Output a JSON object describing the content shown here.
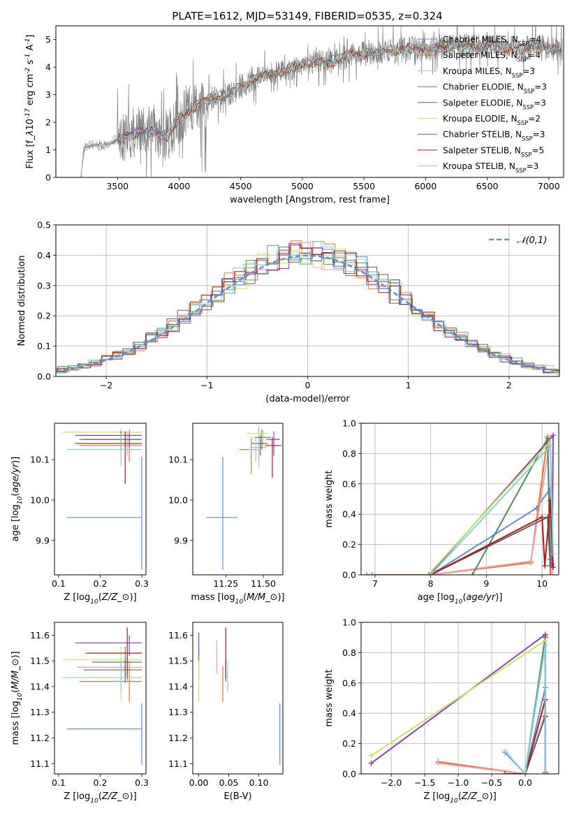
{
  "figure": {
    "title": "PLATE=1612, MJD=53149, FIBERID=0535, z=0.324"
  },
  "models": [
    {
      "label": "Chabrier MILES, N$_{SSP}$=4",
      "name": "Chabrier MILES",
      "n": "4",
      "color": "#5b8fd6"
    },
    {
      "label": "Salpeter MILES, N$_{SSP}$=4",
      "name": "Salpeter MILES",
      "n": "4",
      "color": "#e0762c"
    },
    {
      "label": "Kroupa MILES, N$_{SSP}$=3",
      "name": "Kroupa MILES",
      "n": "3",
      "color": "#f0a0b0"
    },
    {
      "label": "Chabrier ELODIE, N$_{SSP}$=3",
      "name": "Chabrier ELODIE",
      "n": "3",
      "color": "#4f8a5e"
    },
    {
      "label": "Salpeter ELODIE, N$_{SSP}$=3",
      "name": "Salpeter ELODIE",
      "n": "3",
      "color": "#8c3fb3"
    },
    {
      "label": "Kroupa ELODIE, N$_{SSP}$=2",
      "name": "Kroupa ELODIE",
      "n": "2",
      "color": "#c8e85a"
    },
    {
      "label": "Chabrier STELIB, N$_{SSP}$=3",
      "name": "Chabrier STELIB",
      "n": "3",
      "color": "#606060"
    },
    {
      "label": "Salpeter STELIB, N$_{SSP}$=5",
      "name": "Salpeter STELIB",
      "n": "5",
      "color": "#b01818"
    },
    {
      "label": "Kroupa STELIB, N$_{SSP}$=3",
      "name": "Kroupa STELIB",
      "n": "3",
      "color": "#7fd3df"
    }
  ],
  "chart_data": [
    {
      "id": "spectrum",
      "type": "line",
      "title": "PLATE=1612, MJD=53149, FIBERID=0535, z=0.324",
      "xlabel": "wavelength [Angstrom, rest frame]",
      "ylabel": "Flux [f$_\\lambda$10$^{-17}$ erg cm$^{-2}$ s$^{-1}$ A$^{-1}$]",
      "xlim": [
        3000,
        7120
      ],
      "ylim": [
        0,
        5.5
      ],
      "xticks": [
        3500,
        4000,
        4500,
        5000,
        5500,
        6000,
        6500,
        7000
      ],
      "yticks": [
        0,
        1,
        2,
        3,
        4,
        5
      ],
      "grid": false,
      "legend": "upper right",
      "data_color": "#808080",
      "data_points": [
        [
          3200,
          0.0
        ],
        [
          3230,
          1.1
        ],
        [
          3300,
          1.15
        ],
        [
          3400,
          1.2
        ],
        [
          3500,
          1.35
        ],
        [
          3600,
          1.55
        ],
        [
          3700,
          1.7
        ],
        [
          3800,
          1.65
        ],
        [
          3900,
          1.45
        ],
        [
          4000,
          2.1
        ],
        [
          4100,
          2.5
        ],
        [
          4200,
          2.75
        ],
        [
          4300,
          2.9
        ],
        [
          4400,
          3.0
        ],
        [
          4500,
          3.3
        ],
        [
          4600,
          3.55
        ],
        [
          4700,
          3.7
        ],
        [
          4800,
          3.8
        ],
        [
          4900,
          3.95
        ],
        [
          5000,
          4.1
        ],
        [
          5100,
          4.2
        ],
        [
          5200,
          4.15
        ],
        [
          5300,
          4.3
        ],
        [
          5400,
          4.45
        ],
        [
          5500,
          4.5
        ],
        [
          5600,
          4.55
        ],
        [
          5700,
          4.6
        ],
        [
          5800,
          4.65
        ],
        [
          5900,
          4.7
        ],
        [
          6000,
          4.65
        ],
        [
          6100,
          4.7
        ],
        [
          6200,
          4.75
        ],
        [
          6300,
          4.8
        ],
        [
          6400,
          4.75
        ],
        [
          6500,
          4.8
        ],
        [
          6600,
          4.75
        ],
        [
          6700,
          4.7
        ],
        [
          6800,
          4.65
        ],
        [
          6900,
          4.75
        ],
        [
          7000,
          4.7
        ],
        [
          7100,
          4.6
        ]
      ],
      "model_start": [
        3200,
        3200,
        3500,
        3500,
        3500,
        3900,
        3500,
        3500,
        3200
      ]
    },
    {
      "id": "residual_histogram",
      "type": "histogram",
      "xlabel": "(data-model)/error",
      "ylabel": "Normed distribution",
      "xlim": [
        -2.5,
        2.5
      ],
      "ylim": [
        0,
        0.5
      ],
      "xticks": [
        -2,
        -1,
        0,
        1,
        2
      ],
      "yticks": [
        0.0,
        0.1,
        0.2,
        0.3,
        0.4,
        0.5
      ],
      "grid": true,
      "reference_curve": {
        "label": "$\\mathcal{N}(0,1)$",
        "mean": 0,
        "sigma": 1
      },
      "bin_width": 0.11,
      "x_range": [
        -2.6,
        2.6
      ],
      "hist_offsets": [
        0.0,
        0.012,
        -0.01,
        0.008,
        -0.006,
        0.015,
        -0.012,
        0.004,
        -0.015
      ]
    },
    {
      "id": "age_vs_Z",
      "type": "errorbar",
      "xlabel": "Z [log$_{10}$($Z/Z_\\odot$)]",
      "ylabel": "age  [log$_{10}$($age/yr$)]",
      "xlim": [
        0.09,
        0.31
      ],
      "ylim": [
        9.815,
        10.19
      ],
      "xticks": [
        0.1,
        0.2,
        0.3
      ],
      "yticks": [
        9.9,
        10.0,
        10.1
      ],
      "points": [
        {
          "x": 0.3,
          "y": 9.957,
          "xerr": [
            0.18,
            0.0
          ],
          "yerr": [
            0.13,
            0.15
          ]
        },
        {
          "x": 0.27,
          "y": 10.135,
          "xerr": [
            0.12,
            0.03
          ],
          "yerr": [
            0.04,
            0.04
          ]
        },
        {
          "x": 0.265,
          "y": 10.14,
          "xerr": [
            0.12,
            0.035
          ],
          "yerr": [
            0.03,
            0.03
          ]
        },
        {
          "x": 0.25,
          "y": 10.15,
          "xerr": [
            0.1,
            0.05
          ],
          "yerr": [
            0.03,
            0.025
          ]
        },
        {
          "x": 0.27,
          "y": 10.16,
          "xerr": [
            0.13,
            0.03
          ],
          "yerr": [
            0.03,
            0.01
          ]
        },
        {
          "x": 0.25,
          "y": 10.168,
          "xerr": [
            0.14,
            0.05
          ],
          "yerr": [
            0.04,
            0.006
          ]
        },
        {
          "x": 0.25,
          "y": 10.15,
          "xerr": [
            0.09,
            0.05
          ],
          "yerr": [
            0.03,
            0.02
          ]
        },
        {
          "x": 0.26,
          "y": 10.14,
          "xerr": [
            0.12,
            0.04
          ],
          "yerr": [
            0.1,
            0.03
          ]
        },
        {
          "x": 0.25,
          "y": 10.125,
          "xerr": [
            0.13,
            0.05
          ],
          "yerr": [
            0.04,
            0.04
          ]
        }
      ]
    },
    {
      "id": "age_vs_mass",
      "type": "errorbar",
      "xlabel": "mass [log$_{10}$($M/M_\\odot$)]",
      "ylabel": "",
      "xlim": [
        11.03,
        11.63
      ],
      "ylim": [
        9.815,
        10.19
      ],
      "xticks": [
        11.25,
        11.5
      ],
      "yticks": [
        9.9,
        10.0,
        10.1
      ],
      "points": [
        {
          "x": 11.23,
          "y": 9.957,
          "xerr": [
            0.11,
            0.1
          ],
          "yerr": [
            0.13,
            0.15
          ]
        },
        {
          "x": 11.42,
          "y": 10.125,
          "xerr": [
            0.08,
            0.05
          ],
          "yerr": [
            0.06,
            0.03
          ]
        },
        {
          "x": 11.47,
          "y": 10.13,
          "xerr": [
            0.06,
            0.05
          ],
          "yerr": [
            0.05,
            0.05
          ]
        },
        {
          "x": 11.49,
          "y": 10.155,
          "xerr": [
            0.05,
            0.06
          ],
          "yerr": [
            0.03,
            0.02
          ]
        },
        {
          "x": 11.57,
          "y": 10.15,
          "xerr": [
            0.05,
            0.04
          ],
          "yerr": [
            0.04,
            0.02
          ]
        },
        {
          "x": 11.5,
          "y": 10.165,
          "xerr": [
            0.11,
            0.03
          ],
          "yerr": [
            0.03,
            0.007
          ]
        },
        {
          "x": 11.48,
          "y": 10.14,
          "xerr": [
            0.06,
            0.05
          ],
          "yerr": [
            0.03,
            0.02
          ]
        },
        {
          "x": 11.56,
          "y": 10.135,
          "xerr": [
            0.05,
            0.06
          ],
          "yerr": [
            0.08,
            0.02
          ]
        },
        {
          "x": 11.45,
          "y": 10.125,
          "xerr": [
            0.05,
            0.04
          ],
          "yerr": [
            0.03,
            0.03
          ]
        }
      ]
    },
    {
      "id": "mass_weight_vs_age",
      "type": "line",
      "xlabel": "age  [log$_{10}$($age/yr$)]",
      "ylabel": "mass weight",
      "xlim": [
        6.75,
        10.3
      ],
      "ylim": [
        0,
        1
      ],
      "xticks": [
        7,
        8,
        9,
        10
      ],
      "yticks": [
        0.0,
        0.2,
        0.4,
        0.6,
        0.8,
        1.0
      ],
      "grid": true,
      "series": [
        {
          "x": [
            6.85,
            8.0,
            9.9,
            10.15,
            10.18
          ],
          "y": [
            0.0,
            0.0,
            0.44,
            0.57,
            0.0
          ]
        },
        {
          "x": [
            6.95,
            8.0,
            9.8,
            10.1,
            10.15
          ],
          "y": [
            0.0,
            0.0,
            0.08,
            0.91,
            0.0
          ]
        },
        {
          "x": [
            8.0,
            9.8,
            10.15,
            10.18
          ],
          "y": [
            0.0,
            0.09,
            0.9,
            0.0
          ]
        },
        {
          "x": [
            8.75,
            10.1,
            10.15
          ],
          "y": [
            0.0,
            0.9,
            0.1
          ]
        },
        {
          "x": [
            8.0,
            10.2,
            10.18
          ],
          "y": [
            0.01,
            0.92,
            0.07
          ]
        },
        {
          "x": [
            8.0,
            10.15
          ],
          "y": [
            0.02,
            0.88
          ]
        },
        {
          "x": [
            8.0,
            10.1,
            10.15
          ],
          "y": [
            0.0,
            0.38,
            0.06
          ]
        },
        {
          "x": [
            8.0,
            10.0,
            10.05,
            10.15,
            10.2
          ],
          "y": [
            0.0,
            0.38,
            0.06,
            0.49,
            0.05
          ]
        },
        {
          "x": [
            8.0,
            10.15,
            10.2
          ],
          "y": [
            0.0,
            0.85,
            0.14
          ]
        }
      ]
    },
    {
      "id": "mass_vs_Z",
      "type": "errorbar",
      "xlabel": "Z [log$_{10}$($Z/Z_\\odot$)]",
      "ylabel": "mass [log$_{10}$($M/M_\\odot$)]",
      "xlim": [
        0.09,
        0.31
      ],
      "ylim": [
        11.06,
        11.65
      ],
      "xticks": [
        0.1,
        0.2,
        0.3
      ],
      "yticks": [
        11.1,
        11.2,
        11.3,
        11.4,
        11.5,
        11.6
      ],
      "points": [
        {
          "x": 0.3,
          "y": 11.235,
          "xerr": [
            0.18,
            0.0
          ],
          "yerr": [
            0.14,
            0.1
          ]
        },
        {
          "x": 0.27,
          "y": 11.42,
          "xerr": [
            0.12,
            0.03
          ],
          "yerr": [
            0.08,
            0.08
          ]
        },
        {
          "x": 0.265,
          "y": 11.475,
          "xerr": [
            0.12,
            0.035
          ],
          "yerr": [
            0.06,
            0.05
          ]
        },
        {
          "x": 0.26,
          "y": 11.495,
          "xerr": [
            0.08,
            0.04
          ],
          "yerr": [
            0.06,
            0.06
          ]
        },
        {
          "x": 0.27,
          "y": 11.57,
          "xerr": [
            0.13,
            0.03
          ],
          "yerr": [
            0.05,
            0.03
          ]
        },
        {
          "x": 0.25,
          "y": 11.505,
          "xerr": [
            0.14,
            0.05
          ],
          "yerr": [
            0.16,
            0.05
          ]
        },
        {
          "x": 0.26,
          "y": 11.465,
          "xerr": [
            0.1,
            0.04
          ],
          "yerr": [
            0.05,
            0.04
          ]
        },
        {
          "x": 0.265,
          "y": 11.53,
          "xerr": [
            0.1,
            0.035
          ],
          "yerr": [
            0.1,
            0.1
          ]
        },
        {
          "x": 0.25,
          "y": 11.435,
          "xerr": [
            0.14,
            0.05
          ],
          "yerr": [
            0.06,
            0.06
          ]
        }
      ]
    },
    {
      "id": "mass_vs_ebv",
      "type": "errorbar",
      "xlabel": "E(B-V)",
      "ylabel": "",
      "xlim": [
        -0.01,
        0.14
      ],
      "ylim": [
        11.06,
        11.65
      ],
      "xticks": [
        0.0,
        0.05,
        0.1
      ],
      "yticks": [
        11.1,
        11.2,
        11.3,
        11.4,
        11.5,
        11.6
      ],
      "points": [
        {
          "x": 0.135,
          "y": 11.235,
          "xerr": [
            0,
            0
          ],
          "yerr": [
            0.14,
            0.1
          ]
        },
        {
          "x": 0.04,
          "y": 11.42,
          "xerr": [
            0,
            0
          ],
          "yerr": [
            0.08,
            0.06
          ]
        },
        {
          "x": 0.03,
          "y": 11.52,
          "xerr": [
            0,
            0
          ],
          "yerr": [
            0.07,
            0.06
          ]
        },
        {
          "x": 0.0,
          "y": 11.5,
          "xerr": [
            0,
            0
          ],
          "yerr": [
            0.06,
            0.06
          ]
        },
        {
          "x": 0.0,
          "y": 11.57,
          "xerr": [
            0,
            0
          ],
          "yerr": [
            0.05,
            0.04
          ]
        },
        {
          "x": 0.0,
          "y": 11.42,
          "xerr": [
            0,
            0
          ],
          "yerr": [
            0.08,
            0.08
          ]
        },
        {
          "x": 0.045,
          "y": 11.47,
          "xerr": [
            0,
            0
          ],
          "yerr": [
            0.05,
            0.04
          ]
        },
        {
          "x": 0.045,
          "y": 11.53,
          "xerr": [
            0,
            0
          ],
          "yerr": [
            0.1,
            0.1
          ]
        },
        {
          "x": 0.048,
          "y": 11.44,
          "xerr": [
            0,
            0
          ],
          "yerr": [
            0.06,
            0.06
          ]
        }
      ]
    },
    {
      "id": "mass_weight_vs_Z",
      "type": "line",
      "xlabel": "Z [log$_{10}$($Z/Z_\\odot$)]",
      "ylabel": "mass weight",
      "xlim": [
        -2.45,
        0.5
      ],
      "ylim": [
        0,
        1
      ],
      "xticks": [
        -2.0,
        -1.5,
        -1.0,
        -0.5,
        0.0
      ],
      "yticks": [
        0.0,
        0.2,
        0.4,
        0.6,
        0.8,
        1.0
      ],
      "grid": true,
      "series": [
        {
          "x": [
            -0.3,
            0.0,
            0.3,
            0.3
          ],
          "y": [
            0.14,
            0.0,
            0.57,
            0.0
          ]
        },
        {
          "x": [
            -1.3,
            0.0,
            0.3,
            0.3
          ],
          "y": [
            0.08,
            0.0,
            0.91,
            0.0
          ]
        },
        {
          "x": [
            -1.3,
            0.0,
            0.3,
            0.3
          ],
          "y": [
            0.07,
            0.0,
            0.4,
            0.0
          ]
        },
        {
          "x": [
            -0.3,
            0.0,
            0.3,
            0.3
          ],
          "y": [
            0.0,
            0.0,
            0.9,
            0.0
          ]
        },
        {
          "x": [
            -2.3,
            0.3,
            0.3
          ],
          "y": [
            0.07,
            0.92,
            0.01
          ]
        },
        {
          "x": [
            -2.3,
            0.3
          ],
          "y": [
            0.12,
            0.88
          ]
        },
        {
          "x": [
            -0.3,
            0.0,
            0.3
          ],
          "y": [
            0.0,
            0.0,
            0.38
          ]
        },
        {
          "x": [
            -0.3,
            0.0,
            0.3,
            0.3
          ],
          "y": [
            0.0,
            0.0,
            0.49,
            0.38
          ]
        },
        {
          "x": [
            -0.3,
            0.0,
            0.3,
            0.3
          ],
          "y": [
            0.15,
            0.0,
            0.85,
            0.0
          ]
        }
      ]
    }
  ]
}
